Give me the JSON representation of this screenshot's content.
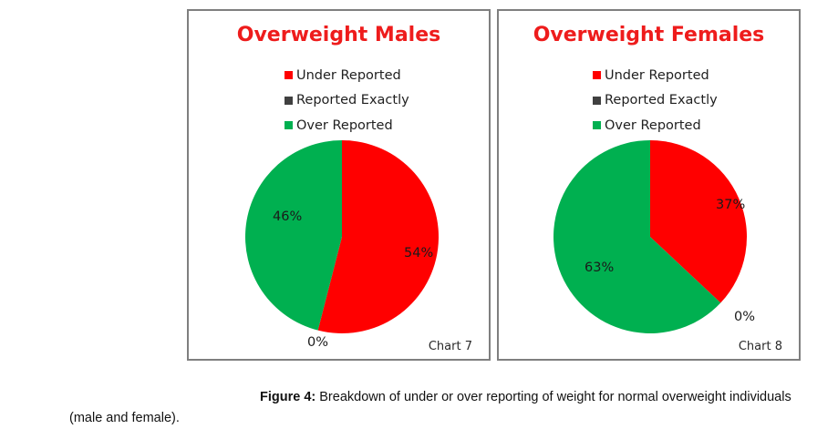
{
  "figure": {
    "caption_label": "Figure 4:",
    "caption_text": " Breakdown of under or over reporting of weight for normal overweight individuals (male and female)."
  },
  "chart_data": [
    {
      "type": "pie",
      "title": "Overweight Males",
      "chart_number": "Chart 7",
      "legend_position": "top",
      "categories": [
        "Under Reported",
        "Reported Exactly",
        "Over Reported"
      ],
      "values": [
        54,
        0,
        46
      ],
      "labels": [
        "54%",
        "0%",
        "46%"
      ],
      "colors": [
        "#ff0000",
        "#404040",
        "#00b050"
      ]
    },
    {
      "type": "pie",
      "title": "Overweight Females",
      "chart_number": "Chart 8",
      "legend_position": "top",
      "categories": [
        "Under Reported",
        "Reported Exactly",
        "Over Reported"
      ],
      "values": [
        37,
        0,
        63
      ],
      "labels": [
        "37%",
        "0%",
        "63%"
      ],
      "colors": [
        "#ff0000",
        "#404040",
        "#00b050"
      ]
    }
  ]
}
